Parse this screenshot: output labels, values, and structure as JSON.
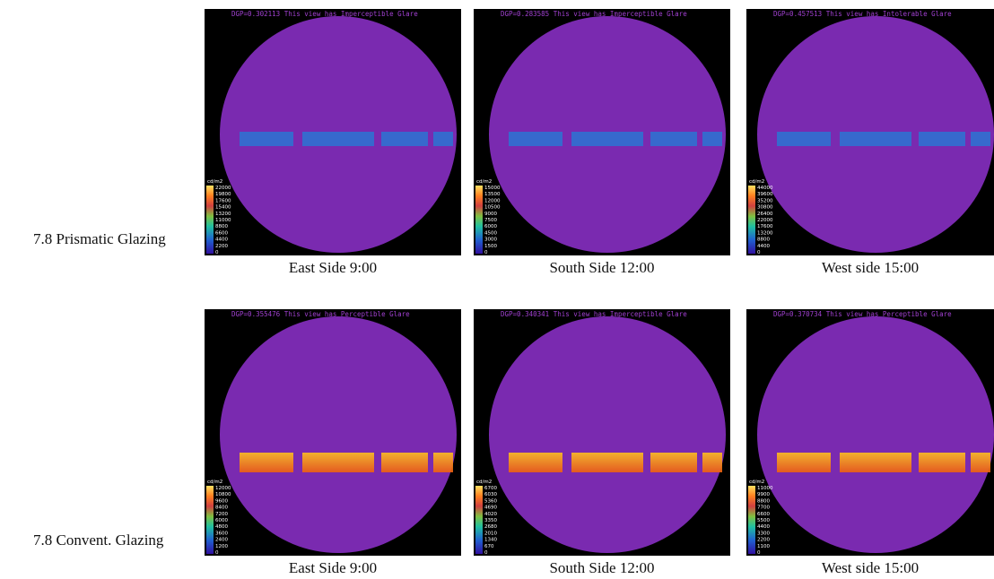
{
  "rows": [
    {
      "label": "7.8 Prismatic Glazing",
      "panels": [
        {
          "dgp_text": "DGP=0.302113 This view has Imperceptible Glare",
          "legend_unit": "cd/m2",
          "legend_values": [
            22000,
            19800,
            17600,
            15400,
            13200,
            11000,
            8800,
            6600,
            4400,
            2200,
            0
          ],
          "caption": "East Side 9:00"
        },
        {
          "dgp_text": "DGP=0.283585 This view has Imperceptible Glare",
          "legend_unit": "cd/m2",
          "legend_values": [
            15000,
            13500,
            12000,
            10500,
            9000,
            7500,
            6000,
            4500,
            3000,
            1500,
            0
          ],
          "caption": "South Side 12:00"
        },
        {
          "dgp_text": "DGP=0.457513 This view has Intolerable Glare",
          "legend_unit": "cd/m2",
          "legend_values": [
            44000,
            39600,
            35200,
            30800,
            26400,
            22000,
            17600,
            13200,
            8800,
            4400,
            0
          ],
          "caption": "West side 15:00"
        }
      ]
    },
    {
      "label": "7.8 Convent. Glazing",
      "panels": [
        {
          "dgp_text": "DGP=0.355476 This view has Perceptible Glare",
          "legend_unit": "cd/m2",
          "legend_values": [
            12000,
            10800,
            9600,
            8400,
            7200,
            6000,
            4800,
            3600,
            2400,
            1200,
            0
          ],
          "caption": "East Side 9:00"
        },
        {
          "dgp_text": "DGP=0.340341 This view has Imperceptible Glare",
          "legend_unit": "cd/m2",
          "legend_values": [
            6700,
            6030,
            5360,
            4690,
            4020,
            3350,
            2680,
            2010,
            1340,
            670,
            0
          ],
          "caption": "South Side 12:00"
        },
        {
          "dgp_text": "DGP=0.370734 This view has Perceptible Glare",
          "legend_unit": "cd/m2",
          "legend_values": [
            11000,
            9900,
            8800,
            7700,
            6600,
            5500,
            4400,
            3300,
            2200,
            1100,
            0
          ],
          "caption": "West side 15:00"
        }
      ]
    }
  ]
}
